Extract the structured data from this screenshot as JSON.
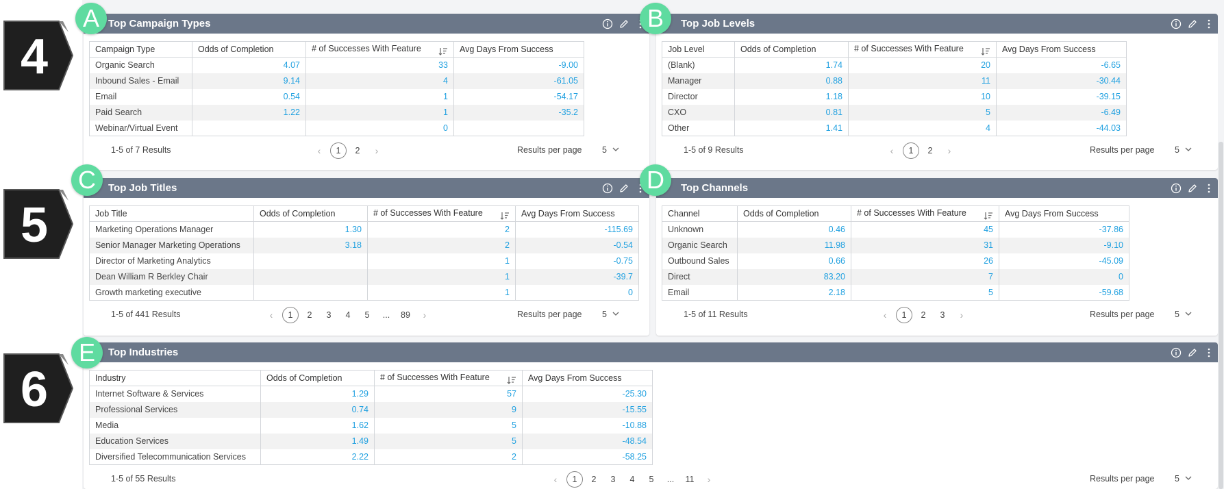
{
  "badges": {
    "b4": "4",
    "b5": "5",
    "b6": "6"
  },
  "letters": {
    "a": "A",
    "b": "B",
    "c": "C",
    "d": "D",
    "e": "E"
  },
  "footer_common": {
    "results_per_page_label": "Results per page",
    "per_page_value": "5",
    "prev": "‹",
    "next": "›",
    "ellipsis": "..."
  },
  "panels": {
    "campaign": {
      "title": "Top Campaign Types",
      "headers": [
        "Campaign Type",
        "Odds of Completion",
        "# of Successes With Feature",
        "Avg Days From Success"
      ],
      "rows": [
        [
          "Organic Search",
          "4.07",
          "33",
          "-9.00"
        ],
        [
          "Inbound Sales - Email",
          "9.14",
          "4",
          "-61.05"
        ],
        [
          "Email",
          "0.54",
          "1",
          "-54.17"
        ],
        [
          "Paid Search",
          "1.22",
          "1",
          "-35.2"
        ],
        [
          "Webinar/Virtual Event",
          "",
          "0",
          ""
        ]
      ],
      "results": "1-5 of 7 Results",
      "pages": [
        "1",
        "2"
      ]
    },
    "joblevel": {
      "title": "Top Job Levels",
      "headers": [
        "Job Level",
        "Odds of Completion",
        "# of Successes With Feature",
        "Avg Days From Success"
      ],
      "rows": [
        [
          "(Blank)",
          "1.74",
          "20",
          "-6.65"
        ],
        [
          "Manager",
          "0.88",
          "11",
          "-30.44"
        ],
        [
          "Director",
          "1.18",
          "10",
          "-39.15"
        ],
        [
          "CXO",
          "0.81",
          "5",
          "-6.49"
        ],
        [
          "Other",
          "1.41",
          "4",
          "-44.03"
        ]
      ],
      "results": "1-5 of 9 Results",
      "pages": [
        "1",
        "2"
      ]
    },
    "jobtitle": {
      "title": "Top Job Titles",
      "headers": [
        "Job Title",
        "Odds of Completion",
        "# of Successes With Feature",
        "Avg Days From Success"
      ],
      "rows": [
        [
          "Marketing Operations Manager",
          "1.30",
          "2",
          "-115.69"
        ],
        [
          "Senior Manager Marketing Operations",
          "3.18",
          "2",
          "-0.54"
        ],
        [
          "Director of Marketing Analytics",
          "",
          "1",
          "-0.75"
        ],
        [
          "Dean William R Berkley Chair",
          "",
          "1",
          "-39.7"
        ],
        [
          "Growth marketing executive",
          "",
          "1",
          "0"
        ]
      ],
      "results": "1-5 of 441 Results",
      "pages": [
        "1",
        "2",
        "3",
        "4",
        "5",
        "...",
        "89"
      ]
    },
    "channels": {
      "title": "Top Channels",
      "headers": [
        "Channel",
        "Odds of Completion",
        "# of Successes With Feature",
        "Avg Days From Success"
      ],
      "rows": [
        [
          "Unknown",
          "0.46",
          "45",
          "-37.86"
        ],
        [
          "Organic Search",
          "11.98",
          "31",
          "-9.10"
        ],
        [
          "Outbound Sales",
          "0.66",
          "26",
          "-45.09"
        ],
        [
          "Direct",
          "83.20",
          "7",
          "0"
        ],
        [
          "Email",
          "2.18",
          "5",
          "-59.68"
        ]
      ],
      "results": "1-5 of 11 Results",
      "pages": [
        "1",
        "2",
        "3"
      ]
    },
    "industries": {
      "title": "Top Industries",
      "headers": [
        "Industry",
        "Odds of Completion",
        "# of Successes With Feature",
        "Avg Days From Success"
      ],
      "rows": [
        [
          "Internet Software & Services",
          "1.29",
          "57",
          "-25.30"
        ],
        [
          "Professional Services",
          "0.74",
          "9",
          "-15.55"
        ],
        [
          "Media",
          "1.62",
          "5",
          "-10.88"
        ],
        [
          "Education Services",
          "1.49",
          "5",
          "-48.54"
        ],
        [
          "Diversified Telecommunication Services",
          "2.22",
          "2",
          "-58.25"
        ]
      ],
      "results": "1-5 of 55 Results",
      "pages": [
        "1",
        "2",
        "3",
        "4",
        "5",
        "...",
        "11"
      ]
    }
  }
}
